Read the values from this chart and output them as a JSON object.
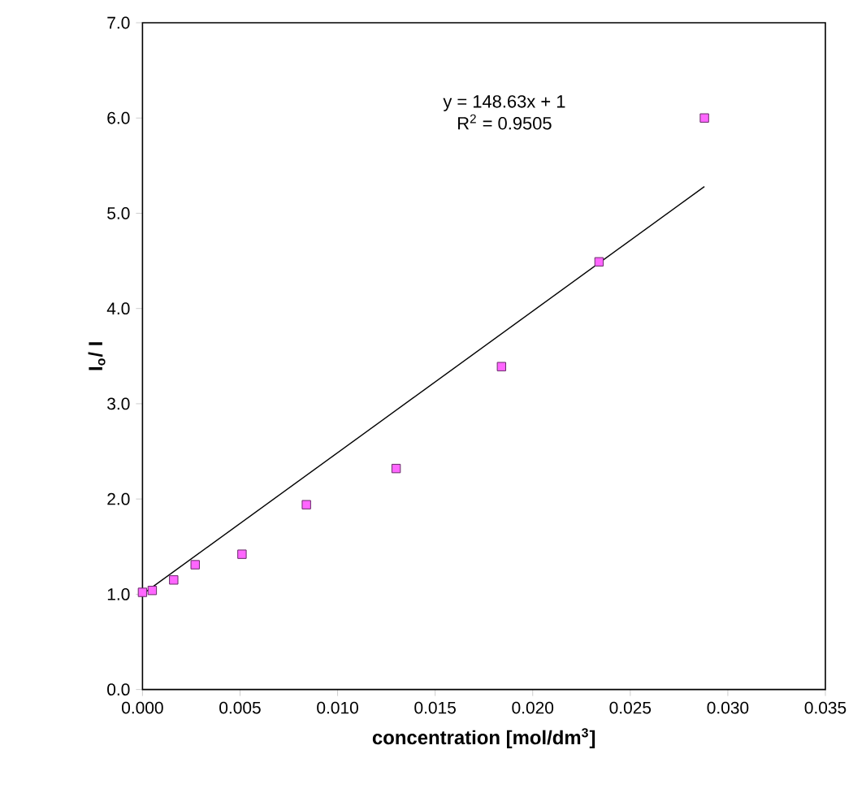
{
  "chart_data": {
    "type": "scatter",
    "xlabel": "**concentration [mol/dm$^{3}$]**",
    "ylabel": "**I$_{o}$/ I**",
    "xlim": [
      0,
      0.035
    ],
    "ylim": [
      0,
      7
    ],
    "xticks": [
      {
        "value": 0,
        "label": "0.000"
      },
      {
        "value": 0.005,
        "label": "0.005"
      },
      {
        "value": 0.01,
        "label": "0.010"
      },
      {
        "value": 0.015,
        "label": "0.015"
      },
      {
        "value": 0.02,
        "label": "0.020"
      },
      {
        "value": 0.025,
        "label": "0.025"
      },
      {
        "value": 0.03,
        "label": "0.030"
      },
      {
        "value": 0.035,
        "label": "0.035"
      }
    ],
    "yticks": [
      {
        "value": 0,
        "label": "0.0"
      },
      {
        "value": 1,
        "label": "1.0"
      },
      {
        "value": 2,
        "label": "2.0"
      },
      {
        "value": 3,
        "label": "3.0"
      },
      {
        "value": 4,
        "label": "4.0"
      },
      {
        "value": 5,
        "label": "5.0"
      },
      {
        "value": 6,
        "label": "6.0"
      },
      {
        "value": 7,
        "label": "7.0"
      }
    ],
    "series": [
      {
        "color": "#ff66ff",
        "marker": "square",
        "x": [
          0,
          0.0005,
          0.0016,
          0.0027,
          0.0051,
          0.0084,
          0.013,
          0.0184,
          0.0234,
          0.0288
        ],
        "values": [
          1.02,
          1.04,
          1.15,
          1.31,
          1.42,
          1.94,
          2.32,
          3.39,
          4.49,
          6.0
        ]
      },
      {
        "type": "line",
        "color": "#000000",
        "marker": "none",
        "x": [
          0,
          0.0288
        ],
        "values": [
          1,
          5.28
        ]
      }
    ],
    "annotations": [
      "y = 148.63x + 1",
      "R$^{2}$ = 0.9505"
    ],
    "grid": false
  }
}
